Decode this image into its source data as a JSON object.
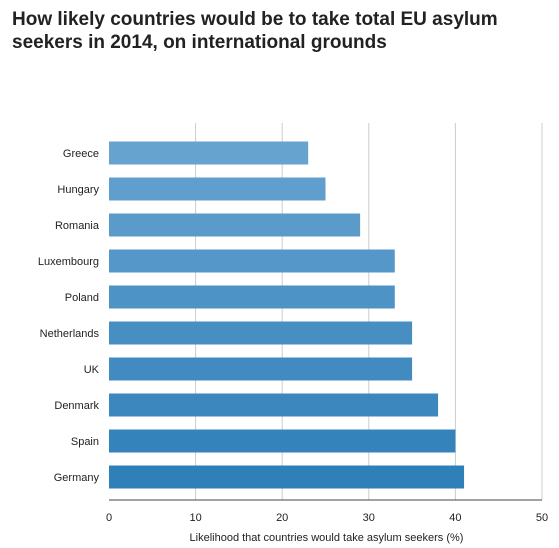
{
  "chart_data": {
    "type": "bar",
    "orientation": "horizontal",
    "title": "How likely countries would be to take total EU asylum seekers in 2014, on international grounds",
    "xlabel": "Likelihood that countries would take asylum seekers (%)",
    "ylabel": "",
    "xlim": [
      0,
      50
    ],
    "xticks": [
      "0",
      "10",
      "20",
      "30",
      "40",
      "50"
    ],
    "grid": true,
    "categories": [
      "Greece",
      "Hungary",
      "Romania",
      "Luxembourg",
      "Poland",
      "Netherlands",
      "UK",
      "Denmark",
      "Spain",
      "Germany"
    ],
    "values": [
      23,
      25,
      29,
      33,
      33,
      35,
      35,
      38,
      40,
      41
    ],
    "colors": {
      "light": "#66a3cf",
      "dark": "#2f7fb9",
      "grid": "#cccccc",
      "axis": "#444444"
    }
  }
}
